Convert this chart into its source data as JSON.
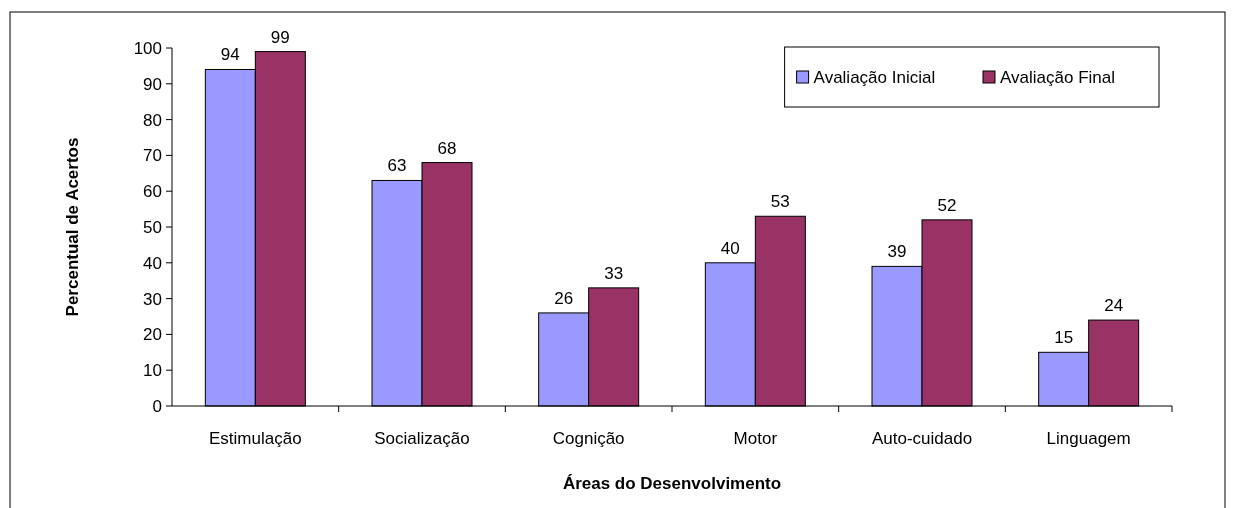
{
  "chart_data": {
    "type": "bar",
    "xlabel": "Áreas do Desenvolvimento",
    "ylabel": "Percentual de Acertos",
    "categories": [
      "Estimulação",
      "Socialização",
      "Cognição",
      "Motor",
      "Auto-cuidado",
      "Linguagem"
    ],
    "series": [
      {
        "name": "Avaliação Inicial",
        "color": "#9999ff",
        "values": [
          94,
          63,
          26,
          40,
          39,
          15
        ]
      },
      {
        "name": "Avaliação Final",
        "color": "#993366",
        "values": [
          99,
          68,
          33,
          53,
          52,
          24
        ]
      }
    ],
    "ylim": [
      0,
      100
    ],
    "yticks": [
      0,
      10,
      20,
      30,
      40,
      50,
      60,
      70,
      80,
      90,
      100
    ],
    "grid": false,
    "legend": "top right",
    "data_labels": true
  }
}
